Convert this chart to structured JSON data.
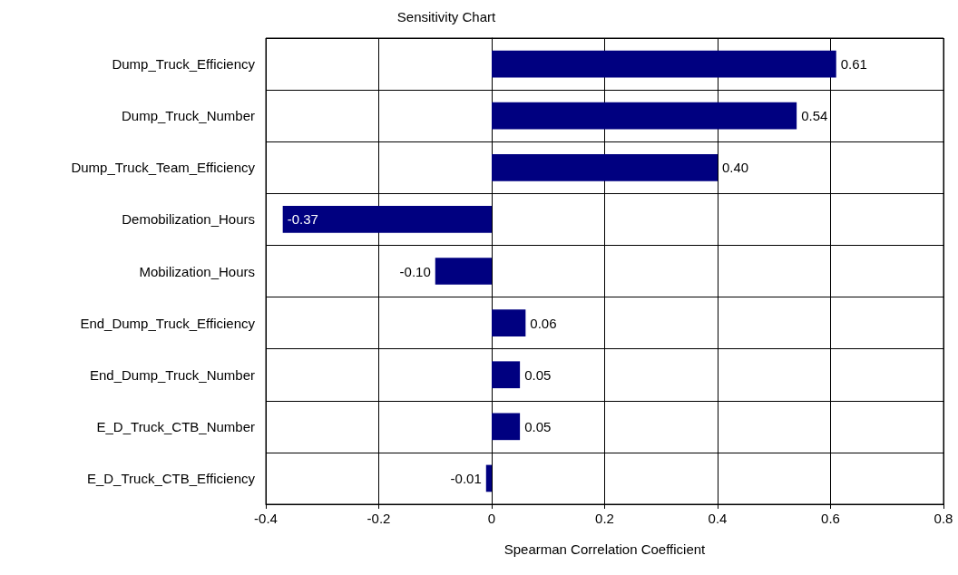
{
  "chart_data": {
    "type": "bar",
    "orientation": "horizontal",
    "title": "Sensitivity Chart",
    "xlabel": "Spearman Correlation Coefficient",
    "categories": [
      "Dump_Truck_Efficiency",
      "Dump_Truck_Number",
      "Dump_Truck_Team_Efficiency",
      "Demobilization_Hours",
      "Mobilization_Hours",
      "End_Dump_Truck_Efficiency",
      "End_Dump_Truck_Number",
      "E_D_Truck_CTB_Number",
      "E_D_Truck_CTB_Efficiency"
    ],
    "values": [
      0.61,
      0.54,
      0.4,
      -0.37,
      -0.1,
      0.06,
      0.05,
      0.05,
      -0.01
    ],
    "color": "#000080",
    "xlim": [
      -0.4,
      0.8
    ],
    "xticks": [
      -0.4,
      -0.2,
      0.0,
      0.2,
      0.4,
      0.6,
      0.8
    ],
    "value_labels": [
      "0.61",
      "0.54",
      "0.40",
      "-0.37",
      "-0.10",
      "0.06",
      "0.05",
      "0.05",
      "-0.01"
    ],
    "grid": true
  }
}
